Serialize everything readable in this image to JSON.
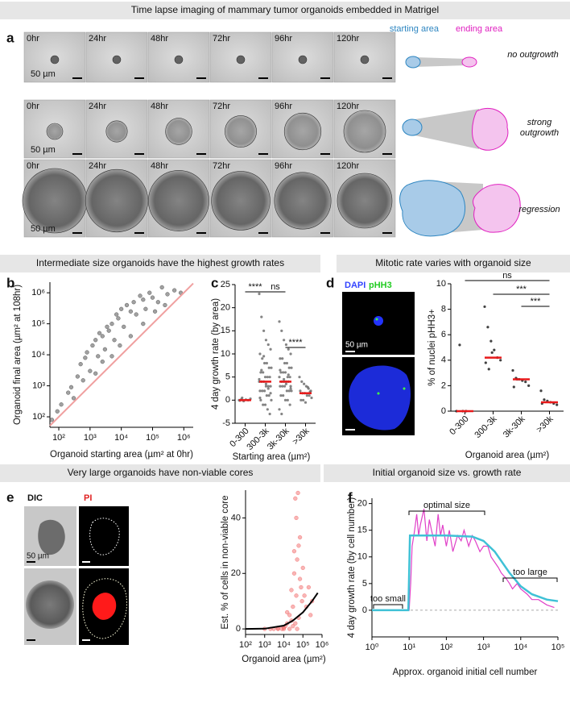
{
  "figure": {
    "sections": [
      "Time lapse imaging of mammary tumor organoids embedded in Matrigel",
      "Intermediate size organoids have the highest growth rates",
      "Mitotic rate varies with organoid size",
      "Very large organoids have non-viable cores",
      "Initial organoid size vs. growth rate"
    ],
    "panel_letters": [
      "a",
      "b",
      "c",
      "d",
      "e",
      "f"
    ],
    "panel_a": {
      "timepoints": [
        "0hr",
        "24hr",
        "48hr",
        "72hr",
        "96hr",
        "120hr"
      ],
      "scale_bar": "50 µm",
      "legend": [
        "starting area",
        "ending area"
      ],
      "rows": [
        "no outgrowth",
        "strong outgrowth",
        "regression"
      ]
    },
    "panel_d_images": {
      "stains": [
        "DAPI",
        "pHH3"
      ],
      "scale_bar": "50 µm"
    },
    "panel_e_images": {
      "stains": [
        "DIC",
        "PI"
      ],
      "scale_bar": "50 µm"
    }
  },
  "chart_data": [
    {
      "type": "scatter",
      "xlabel": "Organoid starting area (µm² at 0hr)",
      "ylabel": "Organoid final area (µm² at 108hr)",
      "log_x": true,
      "log_y": true,
      "xlim": [
        52,
        2000000
      ],
      "ylim": [
        46,
        2200000
      ],
      "xticks": [
        {
          "value": 100,
          "label": "10²"
        },
        {
          "value": 1000,
          "label": "10³"
        },
        {
          "value": 10000,
          "label": "10⁴"
        },
        {
          "value": 100000,
          "label": "10⁵"
        },
        {
          "value": 1000000,
          "label": "10⁶"
        }
      ],
      "yticks": [
        {
          "value": 100,
          "label": "10²"
        },
        {
          "value": 1000,
          "label": "10³"
        },
        {
          "value": 10000,
          "label": "10⁴"
        },
        {
          "value": 100000,
          "label": "10⁵"
        },
        {
          "value": 1000000,
          "label": "10⁶"
        }
      ],
      "color": "#444",
      "x": [
        60,
        90,
        120,
        200,
        250,
        300,
        400,
        500,
        600,
        700,
        800,
        1000,
        1200,
        1500,
        1800,
        2000,
        2500,
        3000,
        3500,
        4000,
        5000,
        6000,
        7000,
        8000,
        10000,
        12000,
        15000,
        20000,
        25000,
        30000,
        40000,
        50000,
        60000,
        80000,
        100000,
        150000,
        200000,
        300000,
        500000,
        800000,
        1500,
        2500,
        5000,
        9000,
        20000,
        50000,
        120000,
        250000
      ],
      "values": [
        80,
        150,
        250,
        600,
        900,
        400,
        2000,
        5000,
        1500,
        8000,
        12000,
        3000,
        20000,
        30000,
        9000,
        50000,
        40000,
        15000,
        80000,
        60000,
        100000,
        30000,
        200000,
        150000,
        300000,
        80000,
        400000,
        250000,
        500000,
        200000,
        800000,
        600000,
        300000,
        1000000,
        700000,
        500000,
        1500000,
        900000,
        1200000,
        1000000,
        2500,
        6000,
        9000,
        20000,
        40000,
        100000,
        250000,
        400000
      ],
      "fit": {
        "x": [
          52,
          2000000
        ],
        "values": [
          52,
          2000000
        ],
        "color": "#f0a0a0"
      }
    },
    {
      "type": "strip",
      "xlabel": "Starting area (µm²)",
      "ylabel": "4 day growth rate (by area)",
      "categories": [
        "0-300",
        "300-3k",
        "3k-30k",
        ">30k"
      ],
      "ylim": [
        -5,
        25
      ],
      "yticks": [
        -5,
        0,
        5,
        10,
        15,
        20,
        25
      ],
      "color": "#666",
      "median_color": "#e8191a",
      "points": [
        [
          0,
          0.2,
          -0.2,
          0.1,
          0,
          0.3,
          -0.1,
          0.5
        ],
        [
          23,
          18,
          15,
          13,
          12,
          11,
          10,
          9,
          8,
          8,
          7,
          7,
          6,
          6,
          5,
          5,
          5,
          4,
          4,
          4,
          3,
          3,
          3,
          2,
          2,
          2,
          1,
          1,
          0,
          0,
          -1,
          -1,
          -2,
          -3,
          4.5,
          6.5,
          9.5,
          3.5,
          2.5,
          1.5,
          0.5
        ],
        [
          17,
          15,
          13,
          12,
          11,
          10,
          9,
          9,
          8,
          8,
          7,
          7,
          6,
          6,
          6,
          5,
          5,
          5,
          4,
          4,
          4,
          4,
          3,
          3,
          3,
          3,
          2,
          2,
          2,
          1,
          1,
          0,
          0,
          -1,
          -2,
          -3,
          4.5,
          3.5,
          5.5,
          2.5,
          6.5
        ],
        [
          5,
          4,
          3.5,
          3,
          2.5,
          2,
          2,
          1.5,
          1.5,
          1,
          1,
          0.5,
          0,
          0,
          -0.5,
          2.8,
          1.8
        ]
      ],
      "medians": [
        0,
        4,
        4,
        1.5
      ],
      "significance": [
        {
          "label": "****",
          "pair": [
            "0-300",
            "300-3k"
          ]
        },
        {
          "label": "ns",
          "pair": [
            "300-3k",
            "3k-30k"
          ]
        },
        {
          "label": "****",
          "pair": [
            "3k-30k",
            ">30k"
          ]
        }
      ]
    },
    {
      "type": "strip",
      "xlabel": "Organoid area (µm²)",
      "ylabel": "% of nuclei pHH3+",
      "categories": [
        "0-300",
        "300-3k",
        "3k-30k",
        ">30k"
      ],
      "ylim": [
        0,
        10
      ],
      "yticks": [
        0,
        2,
        4,
        6,
        8,
        10
      ],
      "color": "#111",
      "median_color": "#e8191a",
      "points": [
        [
          0,
          5.2,
          0,
          0
        ],
        [
          8.2,
          6.6,
          5.5,
          4.8,
          4.2,
          4,
          3.8,
          3.3,
          4.6
        ],
        [
          3.2,
          2.6,
          2.5,
          2.4,
          2.3,
          2,
          1.9,
          2.5
        ],
        [
          1.6,
          0.9,
          0.8,
          0.7,
          0.6,
          0.5,
          0.6
        ]
      ],
      "medians": [
        0,
        4.2,
        2.5,
        0.7
      ],
      "significance": [
        {
          "label": "ns",
          "pair": [
            "0-300",
            ">30k"
          ]
        },
        {
          "label": "***",
          "pair": [
            "300-3k",
            ">30k"
          ]
        },
        {
          "label": "***",
          "pair": [
            "3k-30k",
            ">30k"
          ]
        }
      ]
    },
    {
      "type": "scatter",
      "xlabel": "Organoid area (µm²)",
      "ylabel": "Est. % of cells in non-viable core",
      "log_x": true,
      "xlim": [
        100,
        1000000
      ],
      "ylim": [
        -2,
        50
      ],
      "yticks": [
        0,
        20,
        40
      ],
      "xticks": [
        {
          "value": 100,
          "label": "10²"
        },
        {
          "value": 1000,
          "label": "10³"
        },
        {
          "value": 10000,
          "label": "10⁴"
        },
        {
          "value": 100000,
          "label": "10⁵"
        },
        {
          "value": 1000000,
          "label": "10⁶"
        }
      ],
      "color": "#f26b6b",
      "x": [
        1000,
        2000,
        3000,
        5000,
        8000,
        10000,
        12000,
        15000,
        20000,
        25000,
        30000,
        35000,
        40000,
        45000,
        50000,
        55000,
        60000,
        70000,
        80000,
        90000,
        100000,
        120000,
        150000,
        200000,
        250000,
        300000,
        20000,
        30000,
        40000,
        50000,
        60000,
        45000,
        35000,
        70000,
        10000,
        5000,
        15000,
        25000
      ],
      "values": [
        0,
        0,
        0,
        0,
        0,
        0,
        1,
        2,
        5,
        3,
        8,
        20,
        47,
        12,
        25,
        49,
        30,
        18,
        15,
        10,
        22,
        12,
        8,
        15,
        5,
        10,
        0,
        1,
        2,
        0,
        4,
        40,
        28,
        33,
        0.5,
        0.2,
        6,
        14
      ],
      "fit": {
        "x": [
          100,
          1000,
          10000,
          30000,
          100000,
          300000,
          600000
        ],
        "values": [
          0,
          0.1,
          1.2,
          3,
          6,
          10,
          13
        ],
        "color": "#000"
      }
    },
    {
      "type": "line",
      "xlabel": "Approx. organoid initial cell number",
      "ylabel": "4 day growth rate (by cell number)",
      "log_x": true,
      "xlim": [
        1,
        100000
      ],
      "ylim": [
        -5,
        21
      ],
      "yticks": [
        0,
        5,
        10,
        15,
        20
      ],
      "xticks": [
        {
          "value": 1,
          "label": "10⁰"
        },
        {
          "value": 10,
          "label": "10¹"
        },
        {
          "value": 100,
          "label": "10²"
        },
        {
          "value": 1000,
          "label": "10³"
        },
        {
          "value": 10000,
          "label": "10⁴"
        },
        {
          "value": 100000,
          "label": "10⁵"
        }
      ],
      "annotations": [
        "optimal size",
        "too small",
        "too large"
      ],
      "series": [
        {
          "color": "#e040c8",
          "x": [
            1,
            8,
            9,
            10,
            11,
            12,
            14,
            16,
            18,
            20,
            25,
            30,
            35,
            40,
            50,
            60,
            70,
            80,
            100,
            120,
            150,
            200,
            250,
            300,
            400,
            500,
            600,
            800,
            1000,
            1300,
            1600,
            2000,
            2500,
            3000,
            4000,
            5000,
            6000,
            8000,
            10000,
            15000,
            20000,
            30000,
            50000,
            80000
          ],
          "values": [
            0,
            0,
            0,
            0,
            5,
            12,
            15,
            18,
            14,
            16,
            19,
            13,
            17,
            15,
            12,
            18,
            14,
            16,
            12,
            15,
            11,
            14,
            13,
            15,
            12,
            14,
            13,
            11,
            12,
            12,
            10,
            9,
            8,
            7,
            6,
            5,
            4,
            5,
            4,
            3,
            2,
            2,
            1,
            0.5
          ]
        },
        {
          "color": "#3fc1d6",
          "x": [
            1,
            9.5,
            10.5,
            20,
            100,
            500,
            1000,
            2000,
            5000,
            10000,
            20000,
            50000,
            100000
          ],
          "values": [
            0,
            0,
            14,
            14,
            14,
            13.8,
            13,
            11,
            7,
            4.5,
            3,
            2,
            1.7
          ]
        }
      ]
    }
  ]
}
